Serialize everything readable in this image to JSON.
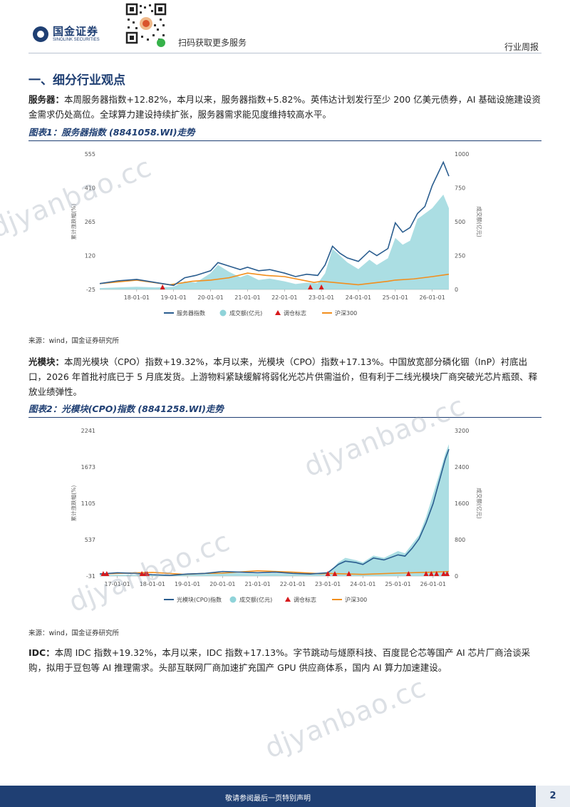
{
  "header": {
    "logo_cn": "国金证券",
    "logo_en": "SINOLINK SECURITIES",
    "qr_caption": "扫码获取更多服务",
    "report_type": "行业周报"
  },
  "section_title": "一、细分行业观点",
  "paragraphs": {
    "server_lead": "服务器：",
    "server_body": "本周服务器指数+12.82%，本月以来，服务器指数+5.82%。英伟达计划发行至少 200 亿美元债券，AI 基础设施建设资金需求仍处高位。全球算力建设持续扩张，服务器需求能见度维持较高水平。",
    "cpo_lead": "光模块：",
    "cpo_body": "本周光模块（CPO）指数+19.32%，本月以来，光模块（CPO）指数+17.13%。中国放宽部分磷化铟（InP）衬底出口，2026 年首批衬底已于 5 月底发货。上游物料紧缺缓解将弱化光芯片供需溢价，但有利于二线光模块厂商突破光芯片瓶颈、释放业绩弹性。",
    "idc_lead": "IDC：",
    "idc_body": "本周 IDC 指数+19.32%，本月以来，IDC 指数+17.13%。字节跳动与燧原科技、百度昆仑芯等国产 AI 芯片厂商洽谈采购，拟用于豆包等 AI 推理需求。头部互联网厂商加速扩充国产 GPU 供应商体系，国内 AI 算力加速建设。"
  },
  "figures": {
    "fig1_title": "图表1：服务器指数 (8841058.WI)走势",
    "fig2_title": "图表2：光模块(CPO)指数 (8841258.WI)走势",
    "source1": "来源：wind，国金证券研究所",
    "source2": "来源：wind，国金证券研究所"
  },
  "chart_data": [
    {
      "type": "line",
      "title": "图表1：服务器指数 (8841058.WI)走势",
      "ylabel": "累计涨跌幅(%)",
      "y2label": "成交额(亿元)",
      "ylim": [
        -25,
        555
      ],
      "y2lim": [
        0,
        1000
      ],
      "yticks": [
        "555",
        "410",
        "265",
        "120",
        "-25"
      ],
      "y2ticks": [
        "1000",
        "750",
        "500",
        "250",
        "0"
      ],
      "xticks": [
        "18-01-01",
        "19-01-01",
        "20-01-01",
        "21-01-01",
        "22-01-01",
        "23-01-01",
        "24-01-01",
        "25-01-01",
        "26-01-01"
      ],
      "x_start": 2017.0,
      "x_end": 2026.45,
      "legend": [
        "服务器指数",
        "成交额(亿元)",
        "调仓标志",
        "沪深300"
      ],
      "legend_position": "bottom",
      "colors": {
        "index": "#2a5d8f",
        "volume": "#8fd3d9",
        "marker": "#d7191c",
        "hs300": "#f28e1c"
      },
      "series": [
        {
          "name": "服务器指数",
          "x": [
            2017.0,
            2017.5,
            2018.0,
            2018.5,
            2019.0,
            2019.3,
            2019.6,
            2020.0,
            2020.2,
            2020.5,
            2020.8,
            2021.0,
            2021.3,
            2021.6,
            2022.0,
            2022.3,
            2022.6,
            2022.9,
            2023.1,
            2023.3,
            2023.5,
            2023.7,
            2024.0,
            2024.3,
            2024.5,
            2024.8,
            2025.0,
            2025.2,
            2025.4,
            2025.6,
            2025.8,
            2026.0,
            2026.15,
            2026.3,
            2026.45
          ],
          "values": [
            0,
            12,
            18,
            5,
            -8,
            25,
            35,
            55,
            90,
            75,
            60,
            70,
            55,
            60,
            45,
            30,
            40,
            35,
            80,
            160,
            130,
            110,
            95,
            140,
            120,
            150,
            260,
            220,
            240,
            300,
            330,
            420,
            470,
            520,
            460
          ]
        },
        {
          "name": "成交额(亿元)",
          "x": [
            2017.0,
            2017.5,
            2018.0,
            2018.5,
            2019.0,
            2019.3,
            2019.6,
            2020.0,
            2020.2,
            2020.5,
            2020.8,
            2021.0,
            2021.3,
            2021.6,
            2022.0,
            2022.3,
            2022.6,
            2022.9,
            2023.1,
            2023.3,
            2023.5,
            2023.7,
            2024.0,
            2024.3,
            2024.5,
            2024.8,
            2025.0,
            2025.2,
            2025.4,
            2025.6,
            2025.8,
            2026.0,
            2026.15,
            2026.3,
            2026.45
          ],
          "values": [
            10,
            15,
            20,
            15,
            20,
            60,
            50,
            120,
            180,
            130,
            90,
            110,
            70,
            80,
            60,
            40,
            50,
            45,
            120,
            300,
            250,
            200,
            150,
            220,
            180,
            230,
            380,
            330,
            360,
            520,
            560,
            600,
            650,
            700,
            600
          ]
        },
        {
          "name": "沪深300",
          "x": [
            2017.0,
            2018.0,
            2018.9,
            2019.5,
            2020.0,
            2020.5,
            2021.0,
            2021.5,
            2022.0,
            2022.8,
            2023.0,
            2024.0,
            2024.8,
            2025.0,
            2025.5,
            2026.0,
            2026.45
          ],
          "values": [
            0,
            15,
            -5,
            10,
            15,
            25,
            45,
            35,
            30,
            5,
            10,
            -5,
            10,
            15,
            20,
            30,
            40
          ]
        }
      ],
      "rebalance_markers": [
        2018.7,
        2022.7,
        2023.0
      ]
    },
    {
      "type": "line",
      "title": "图表2：光模块(CPO)指数 (8841258.WI)走势",
      "ylabel": "累计涨跌幅(%)",
      "y2label": "成交额(亿元)",
      "ylim": [
        -31,
        2241
      ],
      "y2lim": [
        0,
        3200
      ],
      "yticks": [
        "2241",
        "1673",
        "1105",
        "537",
        "-31"
      ],
      "y2ticks": [
        "3200",
        "2400",
        "1600",
        "800",
        "0"
      ],
      "xticks": [
        "17-01-01",
        "18-01-01",
        "19-01-01",
        "20-01-01",
        "21-01-01",
        "22-01-01",
        "23-01-01",
        "24-01-01",
        "25-01-01",
        "26-01-01"
      ],
      "x_start": 2016.5,
      "x_end": 2026.45,
      "legend": [
        "光模块(CPO)指数",
        "成交额(亿元)",
        "调仓标志",
        "沪深300"
      ],
      "legend_position": "bottom",
      "colors": {
        "index": "#2a5d8f",
        "volume": "#8fd3d9",
        "marker": "#d7191c",
        "hs300": "#f28e1c"
      },
      "series": [
        {
          "name": "光模块(CPO)指数",
          "x": [
            2016.5,
            2017.0,
            2017.5,
            2018.0,
            2018.5,
            2019.0,
            2019.5,
            2020.0,
            2020.5,
            2021.0,
            2021.5,
            2022.0,
            2022.5,
            2023.0,
            2023.3,
            2023.5,
            2023.8,
            2024.0,
            2024.3,
            2024.6,
            2025.0,
            2025.2,
            2025.4,
            2025.6,
            2025.8,
            2026.0,
            2026.2,
            2026.35,
            2026.45
          ],
          "values": [
            0,
            20,
            10,
            -10,
            -20,
            0,
            10,
            40,
            30,
            20,
            30,
            10,
            0,
            20,
            150,
            200,
            180,
            150,
            250,
            220,
            300,
            280,
            400,
            550,
            800,
            1100,
            1500,
            1800,
            1950
          ]
        },
        {
          "name": "成交额(亿元)",
          "x": [
            2016.5,
            2017.0,
            2017.5,
            2018.0,
            2018.5,
            2019.0,
            2019.5,
            2020.0,
            2020.5,
            2021.0,
            2021.5,
            2022.0,
            2022.5,
            2023.0,
            2023.3,
            2023.5,
            2023.8,
            2024.0,
            2024.3,
            2024.6,
            2025.0,
            2025.2,
            2025.4,
            2025.6,
            2025.8,
            2026.0,
            2026.2,
            2026.35,
            2026.45
          ],
          "values": [
            20,
            30,
            25,
            20,
            15,
            30,
            40,
            80,
            60,
            50,
            60,
            40,
            30,
            50,
            300,
            400,
            350,
            300,
            450,
            400,
            550,
            500,
            700,
            900,
            1300,
            1800,
            2300,
            2700,
            2900
          ]
        },
        {
          "name": "沪深300",
          "x": [
            2016.5,
            2017.0,
            2018.0,
            2018.9,
            2019.5,
            2020.0,
            2021.0,
            2022.0,
            2022.8,
            2023.0,
            2024.0,
            2025.0,
            2026.0,
            2026.45
          ],
          "values": [
            0,
            10,
            25,
            -5,
            10,
            15,
            50,
            30,
            5,
            10,
            -5,
            15,
            30,
            40
          ]
        }
      ],
      "rebalance_markers": [
        2016.6,
        2016.7,
        2017.7,
        2017.8,
        2017.85,
        2023.0,
        2023.2,
        2023.6,
        2025.3,
        2025.8,
        2025.95,
        2026.1,
        2026.3,
        2026.4
      ]
    }
  ],
  "watermarks": [
    "djyanbao.cc",
    "djyanbao.cc",
    "djyanbao.cc",
    "djyanbao.cc"
  ],
  "footer": {
    "disclaimer": "敬请参阅最后一页特别声明",
    "page_number": "2"
  }
}
